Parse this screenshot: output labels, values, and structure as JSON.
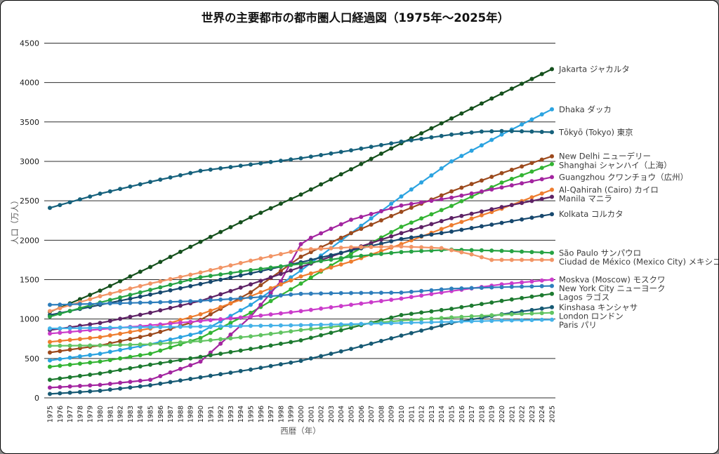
{
  "frame": {
    "background": "#ffffff",
    "border_color": "#000000"
  },
  "chart_data": {
    "type": "line",
    "title": "世界の主要都市の都市圏人口経過図（1975年～2025年）",
    "xlabel": "西暦（年）",
    "ylabel": "人口（万人）",
    "unit": "万人",
    "grid": "horizontal",
    "legend_position": "right of line ends",
    "markers": "circle every year",
    "x_axis": {
      "start": 1975,
      "end": 2025,
      "step": 1,
      "tick_rotation": -90
    },
    "y_axis": {
      "min": 0,
      "max": 4500,
      "step": 500,
      "tick_labels": [
        "0",
        "500",
        "1000",
        "1500",
        "2000",
        "2500",
        "3000",
        "3500",
        "4000",
        "4500"
      ]
    },
    "series": [
      {
        "name": "jakarta",
        "label": "Jakarta ジャカルタ",
        "color": "#15501d",
        "years": [
          1975,
          1980,
          1985,
          1990,
          1995,
          2000,
          2005,
          2010,
          2015,
          2020,
          2025
        ],
        "values": [
          1090,
          1360,
          1660,
          1980,
          2290,
          2580,
          2900,
          3230,
          3545,
          3860,
          4170
        ]
      },
      {
        "name": "dhaka",
        "label": "Dhaka ダッカ",
        "color": "#2ba3e0",
        "years": [
          1975,
          1980,
          1985,
          1990,
          1995,
          2000,
          2005,
          2010,
          2015,
          2020,
          2025
        ],
        "values": [
          475,
          560,
          680,
          830,
          1180,
          1615,
          2090,
          2555,
          3000,
          3340,
          3660
        ]
      },
      {
        "name": "tokyo",
        "label": "Tōkyō (Tokyo) 東京",
        "color": "#16617c",
        "years": [
          1975,
          1980,
          1985,
          1990,
          1995,
          2000,
          2005,
          2010,
          2015,
          2018,
          2020,
          2022,
          2025
        ],
        "values": [
          2410,
          2590,
          2740,
          2880,
          2960,
          3040,
          3140,
          3250,
          3340,
          3378,
          3385,
          3382,
          3370
        ]
      },
      {
        "name": "new-delhi",
        "label": "New Delhi ニューデリー",
        "color": "#9c4a1d",
        "years": [
          1975,
          1980,
          1985,
          1990,
          1995,
          2000,
          2005,
          2010,
          2015,
          2020,
          2025
        ],
        "values": [
          575,
          665,
          800,
          990,
          1340,
          1790,
          2090,
          2360,
          2620,
          2850,
          3065
        ]
      },
      {
        "name": "shanghai",
        "label": "Shanghai シャンハイ（上海）",
        "color": "#33b433",
        "years": [
          1975,
          1980,
          1985,
          1990,
          1995,
          2000,
          2005,
          2010,
          2015,
          2020,
          2025
        ],
        "values": [
          395,
          460,
          560,
          760,
          1080,
          1450,
          1830,
          2170,
          2435,
          2730,
          2965
        ]
      },
      {
        "name": "guangzhou",
        "label": "Guangzhou クワンチョウ（広州）",
        "color": "#a325a0",
        "years": [
          1975,
          1980,
          1985,
          1990,
          1995,
          1998,
          2000,
          2001,
          2005,
          2010,
          2015,
          2020,
          2025
        ],
        "values": [
          130,
          165,
          230,
          460,
          1030,
          1480,
          1950,
          2030,
          2260,
          2440,
          2540,
          2670,
          2800
        ]
      },
      {
        "name": "cairo",
        "label": "Al-Qahirah (Cairo) カイロ",
        "color": "#ee7d2f",
        "years": [
          1975,
          1980,
          1985,
          1990,
          1995,
          2000,
          2005,
          2010,
          2015,
          2020,
          2025
        ],
        "values": [
          710,
          770,
          880,
          1060,
          1290,
          1540,
          1730,
          1950,
          2190,
          2400,
          2640
        ]
      },
      {
        "name": "manila",
        "label": "Manila マニラ",
        "color": "#5e2366",
        "years": [
          1975,
          1980,
          1985,
          1990,
          1995,
          2000,
          2005,
          2010,
          2015,
          2020,
          2025
        ],
        "values": [
          860,
          950,
          1080,
          1230,
          1440,
          1660,
          1880,
          2090,
          2280,
          2420,
          2550
        ]
      },
      {
        "name": "kolkata",
        "label": "Kolkata コルカタ",
        "color": "#17486e",
        "years": [
          1975,
          1980,
          1985,
          1990,
          1995,
          2000,
          2005,
          2010,
          2015,
          2020,
          2025
        ],
        "values": [
          1050,
          1180,
          1310,
          1445,
          1580,
          1720,
          1870,
          2015,
          2110,
          2220,
          2330
        ]
      },
      {
        "name": "sao-paulo",
        "label": "São Paulo サンパウロ",
        "color": "#27a344",
        "years": [
          1975,
          1980,
          1985,
          1990,
          1995,
          2000,
          2005,
          2010,
          2015,
          2020,
          2025
        ],
        "values": [
          1030,
          1210,
          1370,
          1530,
          1620,
          1700,
          1790,
          1850,
          1880,
          1865,
          1840
        ]
      },
      {
        "name": "mexico-city",
        "label": "Ciudad de México (Mexico City) メキシコシティ",
        "color": "#f29566",
        "years": [
          1975,
          1980,
          1985,
          1990,
          1995,
          2000,
          2005,
          2010,
          2014,
          2017,
          2019,
          2022,
          2025
        ],
        "values": [
          1100,
          1290,
          1450,
          1590,
          1740,
          1880,
          1910,
          1920,
          1900,
          1820,
          1750,
          1750,
          1750
        ]
      },
      {
        "name": "moscow",
        "label": "Moskva (Moscow) モスクワ",
        "color": "#cb3ccb",
        "years": [
          1975,
          1980,
          1985,
          1990,
          1995,
          2000,
          2005,
          2010,
          2015,
          2020,
          2025
        ],
        "values": [
          815,
          870,
          920,
          975,
          1030,
          1100,
          1180,
          1260,
          1355,
          1440,
          1500
        ]
      },
      {
        "name": "new-york-city",
        "label": "New York City ニューヨーク",
        "color": "#2e7ebc",
        "years": [
          1975,
          1980,
          1985,
          1990,
          1995,
          2000,
          2005,
          2010,
          2015,
          2020,
          2025
        ],
        "values": [
          1180,
          1195,
          1210,
          1230,
          1270,
          1320,
          1330,
          1335,
          1385,
          1405,
          1420
        ]
      },
      {
        "name": "lagos",
        "label": "Lagos ラゴス",
        "color": "#1d7a30",
        "years": [
          1975,
          1980,
          1985,
          1990,
          1995,
          2000,
          2005,
          2010,
          2015,
          2020,
          2025
        ],
        "values": [
          230,
          310,
          420,
          520,
          620,
          730,
          890,
          1050,
          1130,
          1230,
          1320
        ]
      },
      {
        "name": "kinshasa",
        "label": "Kinshasa キンシャサ",
        "color": "#175a74",
        "years": [
          1975,
          1980,
          1985,
          1990,
          1995,
          2000,
          2005,
          2010,
          2015,
          2020,
          2025
        ],
        "values": [
          50,
          90,
          160,
          260,
          360,
          470,
          620,
          790,
          950,
          1060,
          1150
        ]
      },
      {
        "name": "london",
        "label": "London ロンドン",
        "color": "#62c462",
        "years": [
          1975,
          1980,
          1985,
          1990,
          1995,
          2000,
          2005,
          2010,
          2015,
          2020,
          2025
        ],
        "values": [
          660,
          665,
          680,
          720,
          780,
          860,
          925,
          980,
          1020,
          1055,
          1080
        ]
      },
      {
        "name": "paris",
        "label": "Paris パリ",
        "color": "#45b2e8",
        "years": [
          1975,
          1980,
          1985,
          1990,
          1995,
          2000,
          2005,
          2010,
          2015,
          2020,
          2025
        ],
        "values": [
          880,
          888,
          897,
          905,
          913,
          922,
          935,
          950,
          965,
          980,
          992
        ]
      }
    ]
  }
}
